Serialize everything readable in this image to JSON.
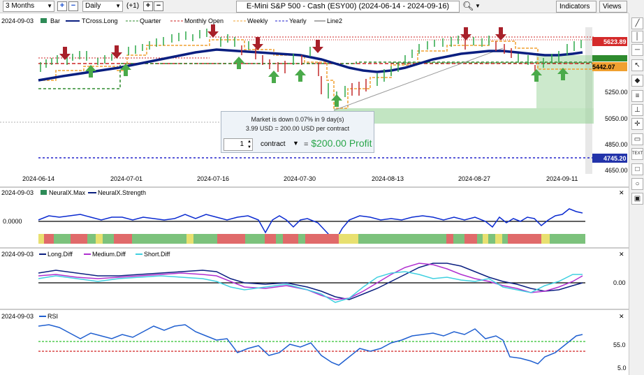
{
  "toolbar": {
    "period": "3 Months",
    "interval": "Daily",
    "offset": "(+1)",
    "title": "E-Mini S&P 500 - Cash (ESY00) (2024-06-14 - 2024-09-16)",
    "indicators_label": "Indicators",
    "views_label": "Views"
  },
  "main_panel": {
    "date_label": "2024-09-03",
    "legend": [
      {
        "label": "Bar",
        "color": "#2e8b57"
      },
      {
        "label": "TCross.Long",
        "color": "#0a1f80"
      },
      {
        "label": "Quarter",
        "color": "#2e8b2e"
      },
      {
        "label": "Monthly Open",
        "color": "#cc2222"
      },
      {
        "label": "Weekly",
        "color": "#f0a030"
      },
      {
        "label": "Yearly",
        "color": "#2222cc"
      },
      {
        "label": "Line2",
        "color": "#555555"
      }
    ],
    "price_labels": [
      {
        "text": "5623.89",
        "bg": "#d42a2a"
      },
      {
        "text": "5442.07",
        "bg": "#f0a030"
      },
      {
        "text": "4745.20",
        "bg": "#2233aa"
      }
    ],
    "axis_prices": [
      "5250.00",
      "5050.00",
      "4850.00",
      "4650.00"
    ],
    "x_labels": [
      "2024-06-14",
      "2024-07-01",
      "2024-07-16",
      "2024-07-30",
      "2024-08-13",
      "2024-08-27",
      "2024-09-11"
    ]
  },
  "popup": {
    "line1": "Market is down 0.07% in 9 day(s)",
    "line2": "3.99 USD = 200.00 USD per contract",
    "quantity": "1",
    "contract_label": "contract",
    "equals": "=",
    "profit": "$200.00 Profit"
  },
  "neural_panel": {
    "date_label": "2024-09-03",
    "legend": [
      {
        "label": "NeuralX.Max",
        "color": "#2e8b57"
      },
      {
        "label": "NeuralX.Strength",
        "color": "#0a1f80"
      }
    ],
    "axis_label": "0.0000"
  },
  "diff_panel": {
    "date_label": "2024-09-03",
    "legend": [
      {
        "label": "Long.Diff",
        "color": "#0a1f80"
      },
      {
        "label": "Medium.Diff",
        "color": "#b030d0"
      },
      {
        "label": "Short.Diff",
        "color": "#40d0e0"
      }
    ],
    "axis_label": "0.00"
  },
  "rsi_panel": {
    "date_label": "2024-09-03",
    "legend": [
      {
        "label": "RSI",
        "color": "#1f5fd0"
      }
    ],
    "axis_labels": [
      "55.0",
      "5.0"
    ]
  },
  "sidebar_tools": [
    "pen-tool",
    "vertical-line",
    "horizontal-line",
    "arrow-tool",
    "marker-tool",
    "fib-tool",
    "ruler-tool",
    "cross-tool",
    "rect-tool",
    "text-tool",
    "square-tool",
    "circle-tool",
    "expand-tool"
  ]
}
